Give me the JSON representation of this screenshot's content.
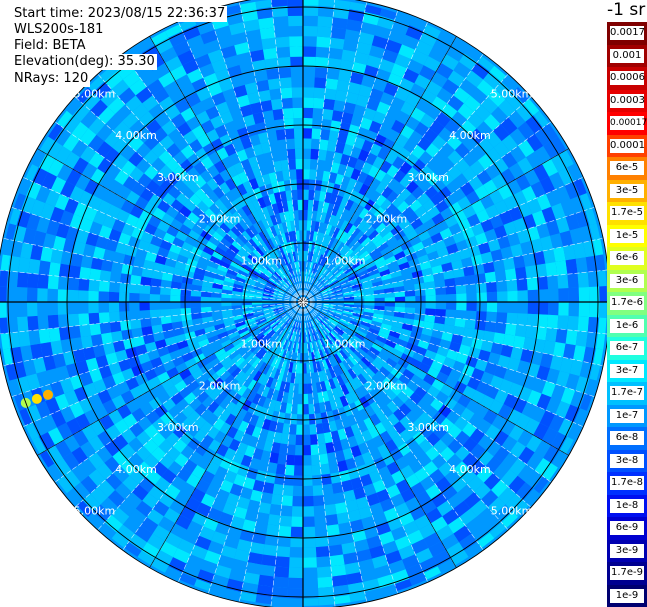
{
  "header": {
    "start_time": "Start time: 2023/08/15 22:36:37",
    "instrument": "WLS200s-181",
    "field": "Field: BETA",
    "elevation": "Elevation(deg): 35.30",
    "nrays": "NRays: 120"
  },
  "colorbar": {
    "unit_label": "-1 sr",
    "entries": [
      {
        "label": "0.0017",
        "color": "#7f0000"
      },
      {
        "label": "0.001",
        "color": "#a00000"
      },
      {
        "label": "0.0006",
        "color": "#c80000"
      },
      {
        "label": "0.0003",
        "color": "#e60000"
      },
      {
        "label": "0.00017",
        "color": "#ff0000"
      },
      {
        "label": "0.0001",
        "color": "#ff4000"
      },
      {
        "label": "6e-5",
        "color": "#ff8000"
      },
      {
        "label": "3e-5",
        "color": "#ffb000"
      },
      {
        "label": "1.7e-5",
        "color": "#ffe000"
      },
      {
        "label": "1e-5",
        "color": "#ffff00"
      },
      {
        "label": "6e-6",
        "color": "#e0ff20"
      },
      {
        "label": "3e-6",
        "color": "#b0ff50"
      },
      {
        "label": "1.7e-6",
        "color": "#80ff80"
      },
      {
        "label": "1e-6",
        "color": "#50ffb0"
      },
      {
        "label": "6e-7",
        "color": "#20ffe0"
      },
      {
        "label": "3e-7",
        "color": "#00e8ff"
      },
      {
        "label": "1.7e-7",
        "color": "#00c0ff"
      },
      {
        "label": "1e-7",
        "color": "#0098ff"
      },
      {
        "label": "6e-8",
        "color": "#0070ff"
      },
      {
        "label": "3e-8",
        "color": "#0050ff"
      },
      {
        "label": "1.7e-8",
        "color": "#0030ff"
      },
      {
        "label": "1e-8",
        "color": "#0010f0"
      },
      {
        "label": "6e-9",
        "color": "#0000d0"
      },
      {
        "label": "3e-9",
        "color": "#0000b0"
      },
      {
        "label": "1.7e-9",
        "color": "#000090"
      },
      {
        "label": "1e-9",
        "color": "#000070"
      }
    ]
  },
  "chart_data": {
    "type": "heatmap",
    "projection": "polar (PPI)",
    "range_unit": "km",
    "range_rings_km": [
      1,
      2,
      3,
      4,
      5
    ],
    "ring_labels": [
      "1.00km",
      "2.00km",
      "3.00km",
      "4.00km",
      "5.00km"
    ],
    "max_range_km": 5.2,
    "grid": true,
    "color_scale": "log",
    "value_range": [
      1e-09,
      0.0017
    ],
    "rays": 120,
    "dominant_level": "1e-7 to 3e-7",
    "features": [
      {
        "description": "strong returns (3e-5 to 1.7e-5) near far west edge",
        "azimuth_deg": 250,
        "range_km": [
          4.6,
          5.0
        ]
      },
      {
        "description": "weak returns (3e-8 to 1e-8) scattered in inner 3 km",
        "range_km": [
          0.5,
          3.0
        ]
      }
    ]
  }
}
